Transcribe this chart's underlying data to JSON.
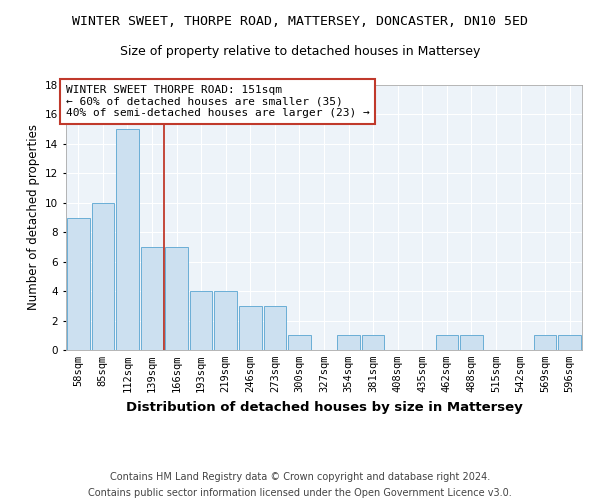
{
  "title1": "WINTER SWEET, THORPE ROAD, MATTERSEY, DONCASTER, DN10 5ED",
  "title2": "Size of property relative to detached houses in Mattersey",
  "xlabel": "Distribution of detached houses by size in Mattersey",
  "ylabel": "Number of detached properties",
  "categories": [
    "58sqm",
    "85sqm",
    "112sqm",
    "139sqm",
    "166sqm",
    "193sqm",
    "219sqm",
    "246sqm",
    "273sqm",
    "300sqm",
    "327sqm",
    "354sqm",
    "381sqm",
    "408sqm",
    "435sqm",
    "462sqm",
    "488sqm",
    "515sqm",
    "542sqm",
    "569sqm",
    "596sqm"
  ],
  "values": [
    9,
    10,
    15,
    7,
    7,
    4,
    4,
    3,
    3,
    1,
    0,
    1,
    1,
    0,
    0,
    1,
    1,
    0,
    0,
    1,
    1
  ],
  "bar_color": "#cce0f0",
  "bar_edge_color": "#6aaed6",
  "vline_x": 3.5,
  "vline_color": "#c0392b",
  "annotation_line1": "WINTER SWEET THORPE ROAD: 151sqm",
  "annotation_line2": "← 60% of detached houses are smaller (35)",
  "annotation_line3": "40% of semi-detached houses are larger (23) →",
  "annotation_box_color": "white",
  "annotation_box_edge": "#c0392b",
  "ylim": [
    0,
    18
  ],
  "yticks": [
    0,
    2,
    4,
    6,
    8,
    10,
    12,
    14,
    16,
    18
  ],
  "footnote1": "Contains HM Land Registry data © Crown copyright and database right 2024.",
  "footnote2": "Contains public sector information licensed under the Open Government Licence v3.0.",
  "title1_fontsize": 9.5,
  "title2_fontsize": 9,
  "xlabel_fontsize": 9.5,
  "ylabel_fontsize": 8.5,
  "tick_fontsize": 7.5,
  "annotation_fontsize": 8,
  "footnote_fontsize": 7,
  "bg_color": "#edf3f9",
  "grid_color": "white",
  "fig_bg": "white"
}
